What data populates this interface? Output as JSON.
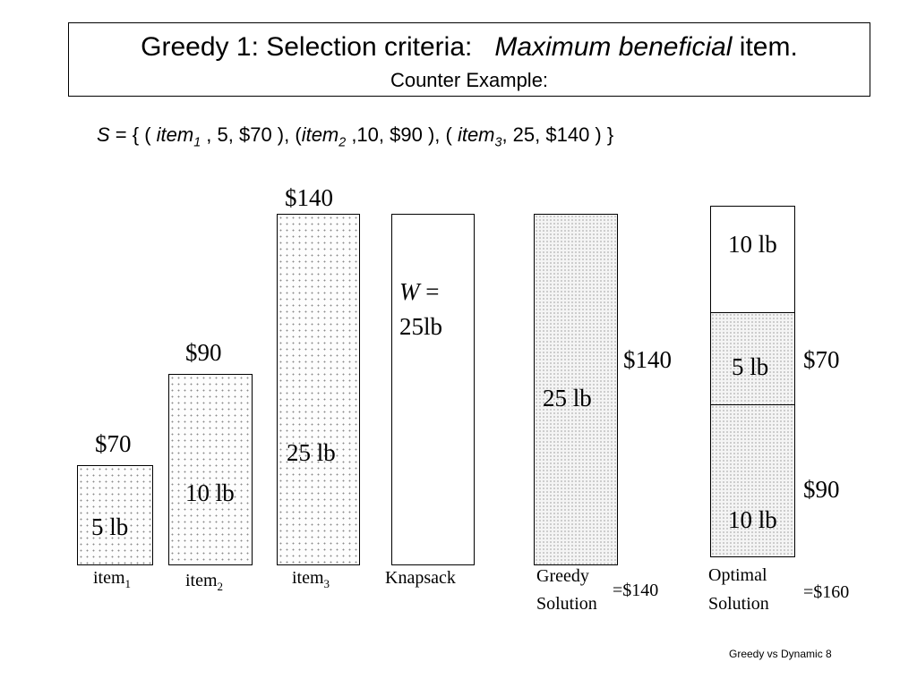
{
  "title": {
    "line1_part1": "Greedy 1: Selection criteria:",
    "line1_italic": "Maximum beneficial",
    "line1_part2": "item.",
    "line2": "Counter Example:"
  },
  "set_def": {
    "s": "S",
    "open": " = { ( ",
    "item": "item",
    "sub1": "1",
    "mid1": " , 5, $70 ), (",
    "sub2": "2",
    "mid2": " ,10, $90 ), ( ",
    "sub3": "3",
    "end": ", 25, $140 ) }"
  },
  "items": [
    {
      "value": "$70",
      "weight": "5 lb",
      "caption": "item",
      "sub": "1"
    },
    {
      "value": "$90",
      "weight": "10 lb",
      "caption": "item",
      "sub": "2"
    },
    {
      "value": "$140",
      "weight": "25 lb",
      "caption": "item",
      "sub": "3"
    }
  ],
  "knapsack": {
    "w_var": "W",
    "w_eq": " =",
    "capacity": "25lb",
    "caption": "Knapsack"
  },
  "greedy": {
    "value": "$140",
    "weight": "25 lb",
    "caption_line1": "Greedy",
    "caption_line2": "Solution",
    "total": "=$140"
  },
  "optimal": {
    "top_weight": "10 lb",
    "mid_weight": "5 lb",
    "mid_value": "$70",
    "bottom_weight": "10 lb",
    "bottom_value": "$90",
    "caption_line1": "Optimal",
    "caption_line2": "Solution",
    "total": "=$160"
  },
  "footer": "Greedy vs Dynamic 8"
}
